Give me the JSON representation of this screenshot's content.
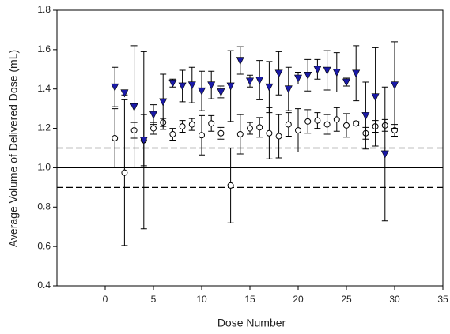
{
  "chart_data": {
    "type": "scatter",
    "x_label": "Dose Number",
    "y_label": "Average Volume of Delivered Dose (mL)",
    "xlim": [
      -5,
      35
    ],
    "xticks": [
      0,
      5,
      10,
      15,
      20,
      25,
      30,
      35
    ],
    "ylim": [
      0.4,
      1.8
    ],
    "yticks": [
      0.4,
      0.6,
      0.8,
      {
        "value": 1,
        "label": "1.0"
      },
      1.2,
      1.4,
      1.6,
      1.8
    ],
    "reference_lines": [
      {
        "value": 1,
        "style": "solid"
      },
      {
        "value": 0.9,
        "style": "dashed"
      },
      {
        "value": 1.1,
        "style": "dashed"
      }
    ],
    "x": [
      1,
      2,
      3,
      4,
      5,
      6,
      7,
      8,
      9,
      10,
      11,
      12,
      13,
      14,
      15,
      16,
      17,
      18,
      19,
      20,
      21,
      22,
      23,
      24,
      25,
      26,
      27,
      28,
      29,
      30
    ],
    "series": [
      {
        "marker": "circle",
        "color": "#000000",
        "values": [
          1.15,
          0.975,
          1.19,
          1.14,
          1.2,
          1.23,
          1.17,
          1.21,
          1.22,
          1.165,
          1.225,
          1.175,
          0.91,
          1.17,
          1.2,
          1.205,
          1.175,
          1.16,
          1.22,
          1.19,
          1.235,
          1.24,
          1.22,
          1.245,
          1.215,
          1.225,
          1.175,
          1.21,
          1.215,
          1.19
        ],
        "errors": [
          0.15,
          0.37,
          0.04,
          0.45,
          0.03,
          0.02,
          0.03,
          0.03,
          0.03,
          0.1,
          0.04,
          0.03,
          0.19,
          0.1,
          0.03,
          0.05,
          0.13,
          0.11,
          0.06,
          0.11,
          0.06,
          0.04,
          0.05,
          0.06,
          0.06,
          0.01,
          0.03,
          0.03,
          0.03,
          0.03
        ]
      },
      {
        "marker": "triangle-down",
        "color": "#1a1aa8",
        "values": [
          1.41,
          1.38,
          1.31,
          1.14,
          1.27,
          1.335,
          1.43,
          1.415,
          1.42,
          1.39,
          1.42,
          1.385,
          1.415,
          1.545,
          1.44,
          1.445,
          1.41,
          1.48,
          1.4,
          1.455,
          1.47,
          1.5,
          1.495,
          1.485,
          1.435,
          1.48,
          1.265,
          1.36,
          1.07,
          1.42
        ],
        "errors": [
          0.1,
          0.01,
          0.31,
          0.13,
          0.05,
          0.14,
          0.02,
          0.08,
          0.09,
          0.1,
          0.07,
          0.03,
          0.18,
          0.07,
          0.03,
          0.1,
          0.13,
          0.11,
          0.11,
          0.03,
          0.08,
          0.05,
          0.1,
          0.1,
          0.02,
          0.14,
          0.17,
          0.25,
          0.34,
          0.22
        ]
      }
    ]
  }
}
